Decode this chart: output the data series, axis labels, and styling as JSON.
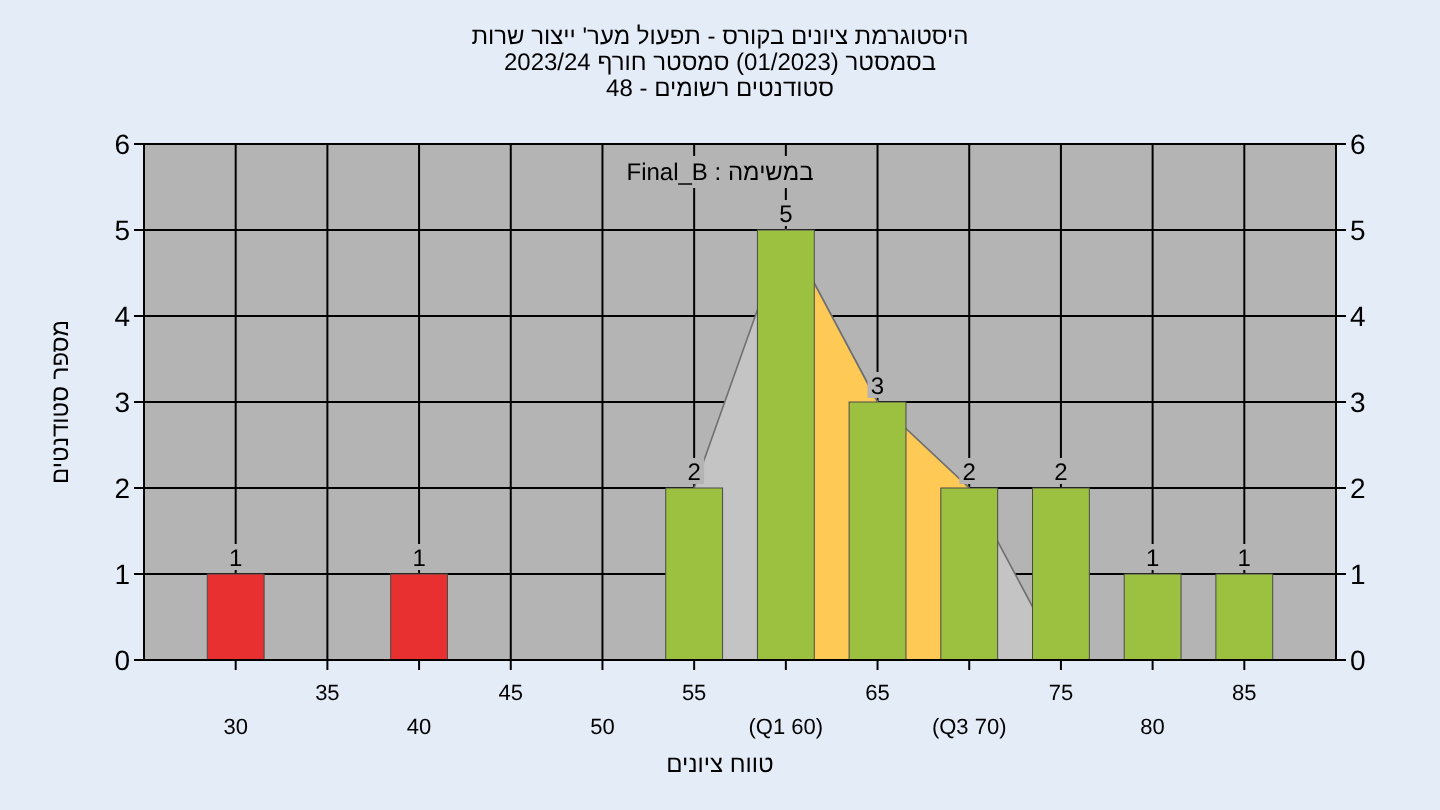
{
  "chart_data": {
    "type": "bar",
    "title": "היסטוגרמת ציונים בקורס - תפעול מער' ייצור שרות",
    "subtitle": "בסמסטר  (01/2023)  סמסטר חורף 2023/24",
    "annotations": [
      "סטודנטים רשומים - 48",
      "Final_B : במשימה"
    ],
    "xlabel": "טווח ציונים",
    "ylabel": "מספר סטודנטים",
    "categories": [
      "30",
      "35",
      "40",
      "45",
      "50",
      "55",
      "(Q1 60)",
      "65",
      "(Q3 70)",
      "75",
      "80",
      "85"
    ],
    "series": [
      {
        "type": "area",
        "color": "#c4c4c4",
        "values": [
          null,
          null,
          null,
          null,
          null,
          2,
          5,
          3,
          2,
          0,
          null,
          null
        ]
      },
      {
        "type": "area",
        "color": "#ffc955",
        "values": [
          null,
          null,
          null,
          null,
          null,
          null,
          5,
          3,
          2,
          null,
          null,
          null
        ]
      },
      {
        "type": "bar",
        "colors": [
          "#e83030",
          "#9cc040",
          "#e83030",
          "#9cc040",
          "#9cc040",
          "#9cc040",
          "#9cc040",
          "#9cc040",
          "#9cc040",
          "#9cc040",
          "#9cc040",
          "#9cc040"
        ],
        "values": [
          1,
          0,
          1,
          0,
          0,
          2,
          5,
          3,
          2,
          2,
          1,
          1
        ],
        "value_labels": [
          "1",
          null,
          "1",
          null,
          null,
          "2",
          "5",
          "3",
          "2",
          "2",
          "1",
          "1"
        ]
      }
    ],
    "ylim": [
      0,
      6
    ],
    "yticks": [
      0,
      1,
      2,
      3,
      4,
      5,
      6
    ],
    "y2lim": [
      0,
      6
    ],
    "y2ticks": [
      0,
      1,
      2,
      3,
      4,
      5,
      6
    ],
    "grid": true
  }
}
